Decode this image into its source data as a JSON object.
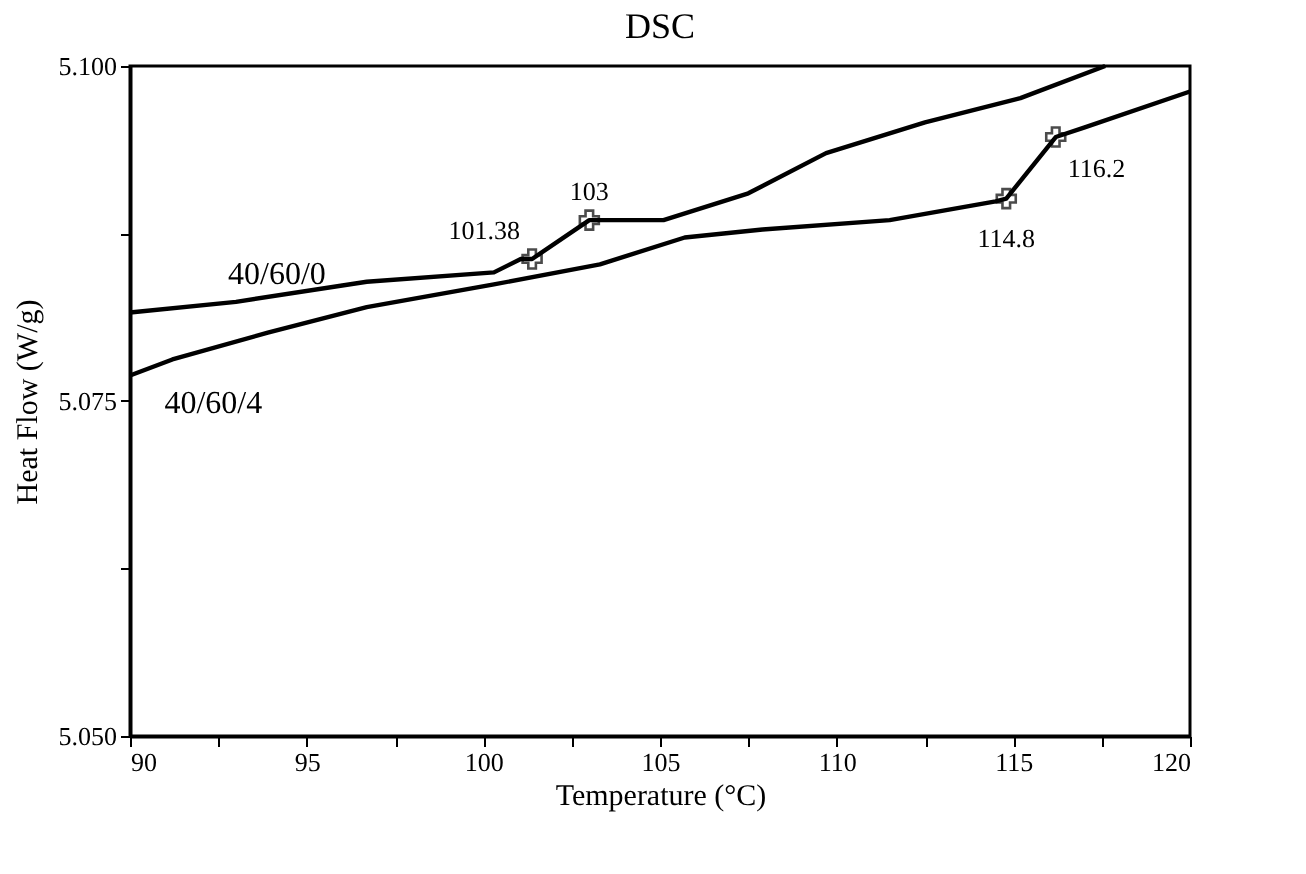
{
  "chart_data": {
    "type": "line",
    "title": "DSC",
    "xlabel": "Temperature (°C)",
    "ylabel": "Heat Flow (W/g)",
    "xlim": [
      90,
      120
    ],
    "ylim": [
      5.05,
      5.1
    ],
    "xticks": [
      90,
      {
        "value": 92.5,
        "label": null
      },
      95,
      {
        "value": 97.5,
        "label": null
      },
      100,
      {
        "value": 102.5,
        "label": null
      },
      105,
      {
        "value": 107.5,
        "label": null
      },
      110,
      {
        "value": 112.5,
        "label": null
      },
      115,
      {
        "value": 117.5,
        "label": null
      },
      120
    ],
    "yticks": [
      {
        "value": 5.05,
        "label": "5.050"
      },
      {
        "value": 5.0625,
        "label": null
      },
      {
        "value": 5.075,
        "label": "5.075"
      },
      {
        "value": 5.0875,
        "label": null
      },
      {
        "value": 5.1,
        "label": "5.100"
      }
    ],
    "grid": false,
    "line_style": "solid",
    "marker": "none",
    "series": [
      {
        "name": "40/60/0",
        "color": "#000000",
        "x": [
          90,
          93.0,
          96.7,
          100.3,
          101.06,
          101.38,
          103,
          105.1,
          107.5,
          109.7,
          112.5,
          115.2,
          117.6
        ],
        "values": [
          5.0816,
          5.0824,
          5.0839,
          5.0846,
          5.0856,
          5.0856,
          5.0885,
          5.0885,
          5.0905,
          5.0935,
          5.0958,
          5.0976,
          5.1
        ]
      },
      {
        "name": "40/60/4",
        "color": "#000000",
        "x": [
          90,
          91.2,
          93.9,
          96.7,
          100.3,
          103.3,
          105.7,
          107.9,
          111.5,
          114.5,
          114.8,
          116.2,
          117.0,
          120
        ],
        "values": [
          5.0769,
          5.0781,
          5.0801,
          5.082,
          5.0837,
          5.0852,
          5.0872,
          5.0878,
          5.0885,
          5.0899,
          5.0901,
          5.0947,
          5.0954,
          5.0981
        ]
      }
    ],
    "annotations": [
      {
        "text": "101.38",
        "x": 101.38,
        "y": 5.0856
      },
      {
        "text": "103",
        "x": 103,
        "y": 5.0885
      },
      {
        "text": "114.8",
        "x": 114.8,
        "y": 5.0901
      },
      {
        "text": "116.2",
        "x": 116.2,
        "y": 5.0947
      }
    ]
  }
}
